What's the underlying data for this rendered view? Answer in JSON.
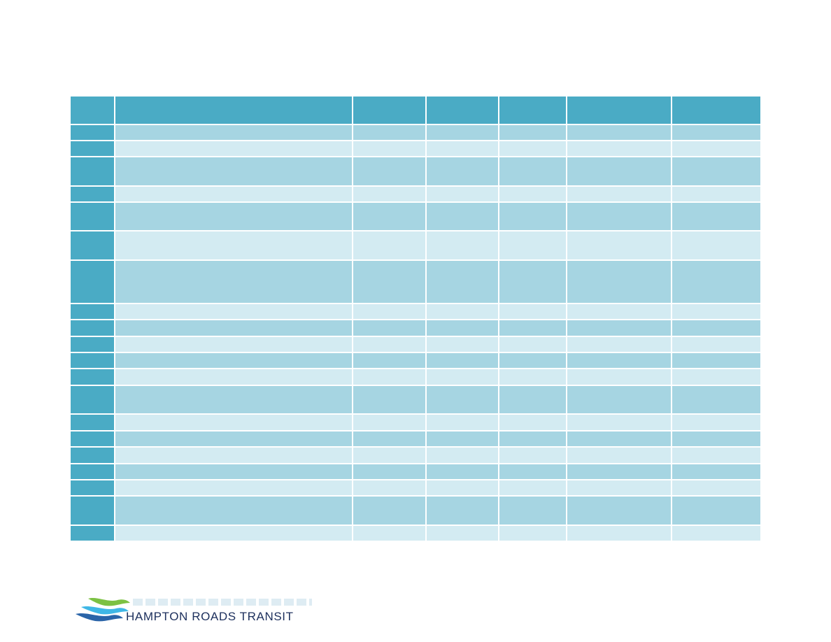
{
  "footer": {
    "logo_text": "HAMPTON ROADS TRANSIT",
    "logo_icon": "hrt-wave-logo-icon"
  },
  "table": {
    "columns": 7,
    "header_rows": 1,
    "body_rows": 20,
    "cells_text": "none visible",
    "colors": {
      "header": "#4aabc5",
      "row_header": "#4aabc5",
      "band_dark": "#a6d5e2",
      "band_light": "#d3ebf2"
    }
  }
}
